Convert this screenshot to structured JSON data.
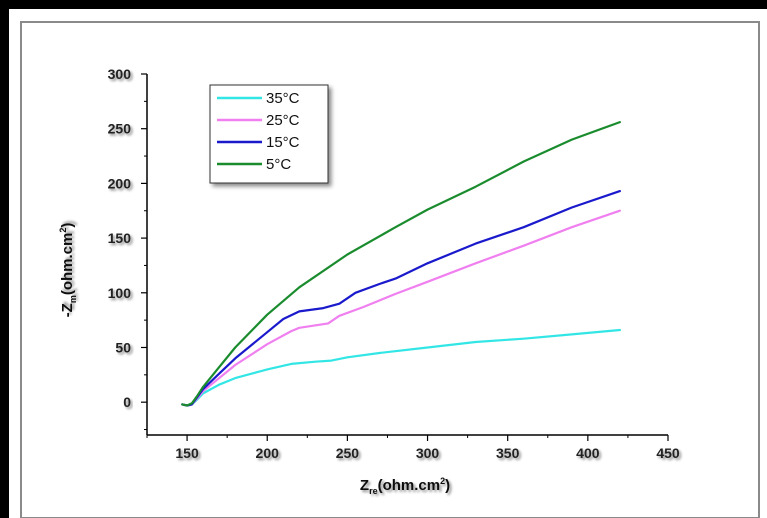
{
  "chart_data": {
    "type": "line",
    "title": "",
    "xlabel": "Z",
    "xlabel_sub": "re",
    "xlabel_unit": "(ohm.cm",
    "xlabel_sup": "2",
    "xlabel_close": ")",
    "ylabel": "-Z",
    "ylabel_sub": "m",
    "ylabel_unit": "(ohm.cm",
    "ylabel_sup": "2",
    "ylabel_close": ")",
    "xlim": [
      125,
      450
    ],
    "ylim": [
      -30,
      300
    ],
    "xticks": [
      "150",
      "200",
      "250",
      "300",
      "350",
      "400",
      "450"
    ],
    "yticks": [
      "0",
      "50",
      "100",
      "150",
      "200",
      "250",
      "300"
    ],
    "legend_position": "top-left",
    "grid": false,
    "series": [
      {
        "name": "35°C",
        "color": "#33e6e6",
        "x": [
          147,
          150,
          153,
          156,
          160,
          170,
          180,
          200,
          215,
          230,
          240,
          250,
          270,
          300,
          330,
          360,
          390,
          420
        ],
        "y": [
          -2,
          -3,
          -2,
          2,
          8,
          16,
          22,
          30,
          35,
          37,
          38,
          41,
          45,
          50,
          55,
          58,
          62,
          66
        ]
      },
      {
        "name": "25°C",
        "color": "#f080f0",
        "x": [
          147,
          150,
          153,
          156,
          160,
          170,
          180,
          200,
          215,
          220,
          238,
          245,
          260,
          280,
          300,
          330,
          360,
          390,
          420
        ],
        "y": [
          -2,
          -3,
          -2,
          3,
          10,
          22,
          34,
          53,
          65,
          68,
          72,
          79,
          87,
          99,
          110,
          127,
          143,
          160,
          175
        ]
      },
      {
        "name": "15°C",
        "color": "#1a1acc",
        "x": [
          147,
          150,
          153,
          156,
          160,
          170,
          180,
          200,
          210,
          220,
          235,
          245,
          255,
          270,
          280,
          300,
          330,
          360,
          390,
          420
        ],
        "y": [
          -2,
          -3,
          -2,
          4,
          12,
          26,
          40,
          64,
          76,
          83,
          86,
          90,
          100,
          108,
          113,
          127,
          145,
          160,
          178,
          193
        ]
      },
      {
        "name": "5°C",
        "color": "#1a8c2e",
        "x": [
          147,
          150,
          153,
          156,
          160,
          170,
          180,
          200,
          220,
          250,
          280,
          300,
          330,
          360,
          390,
          420
        ],
        "y": [
          -2,
          -3,
          -1,
          5,
          14,
          32,
          50,
          80,
          105,
          135,
          160,
          176,
          197,
          220,
          240,
          256
        ]
      }
    ]
  }
}
